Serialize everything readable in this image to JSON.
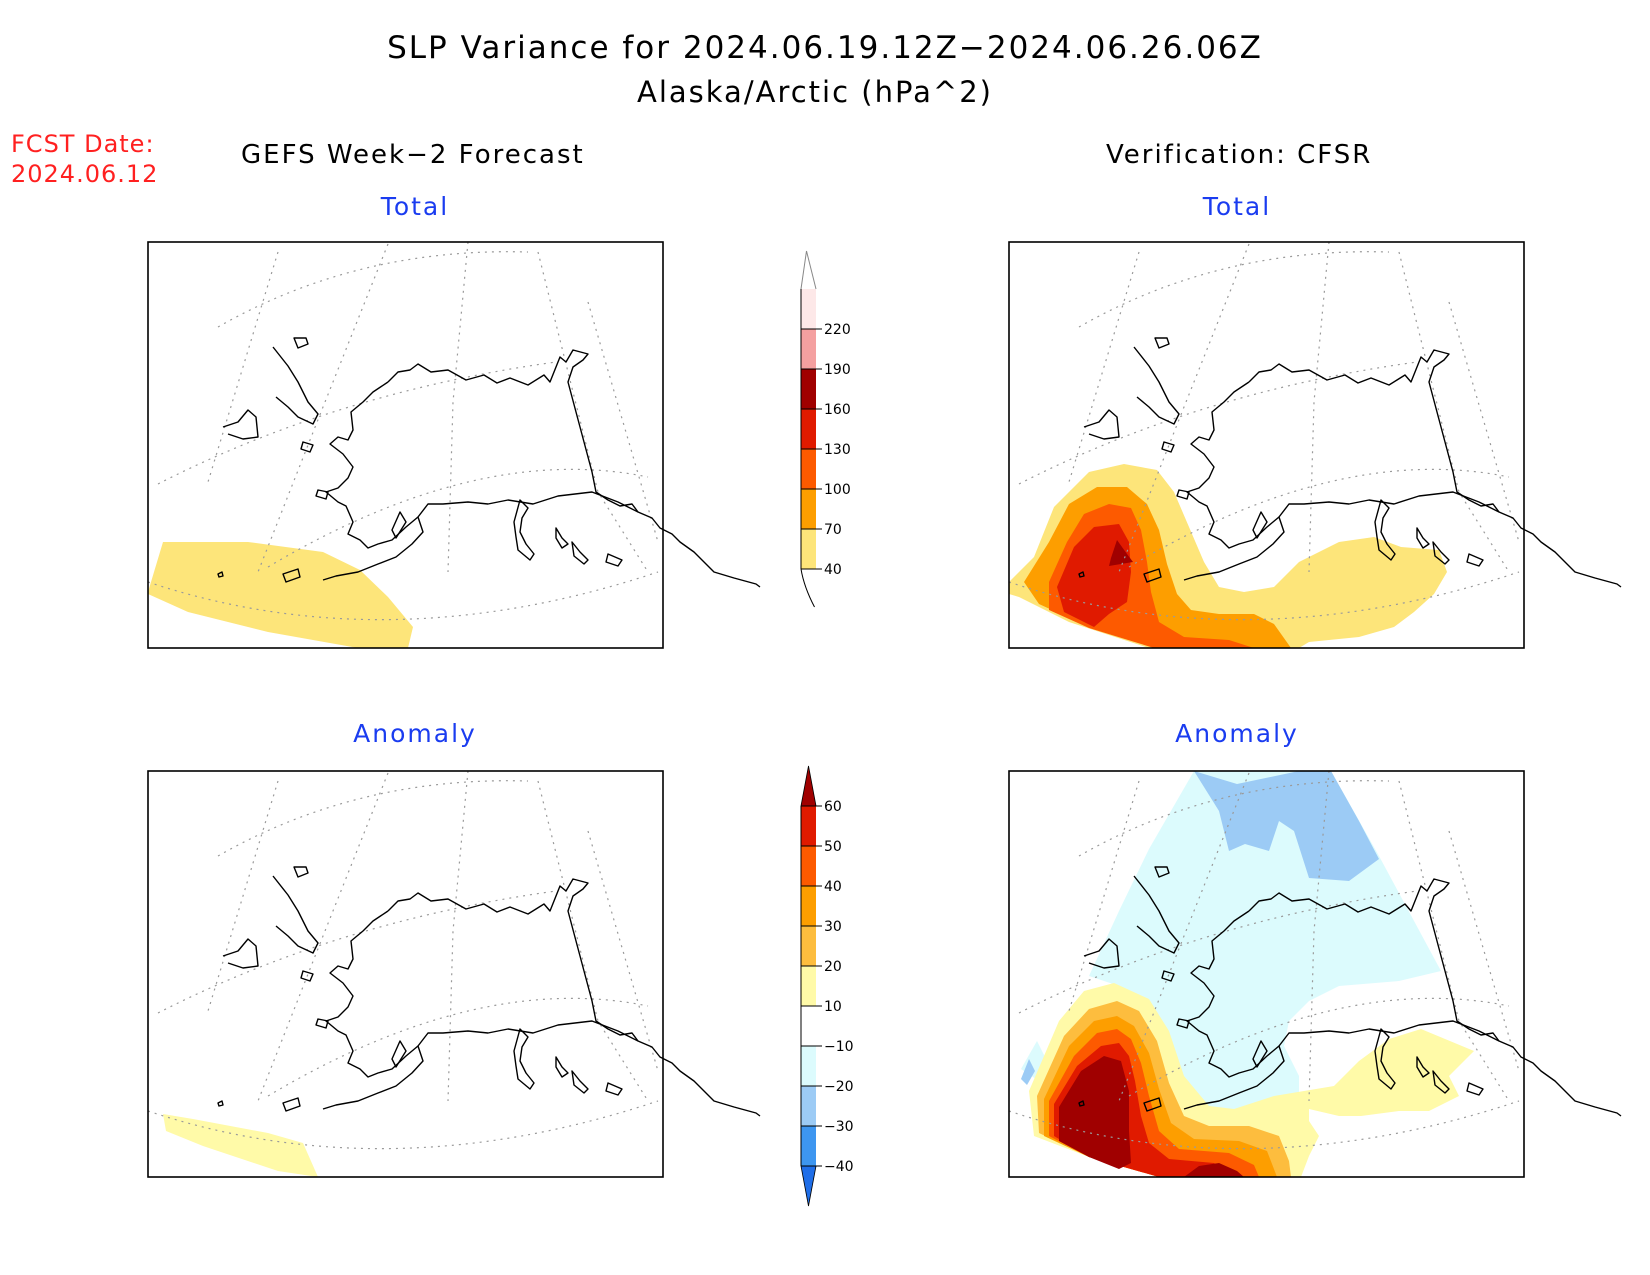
{
  "title": "SLP Variance for 2024.06.19.12Z−2024.06.26.06Z",
  "subtitle": "Alaska/Arctic (hPa^2)",
  "fcst_date": {
    "label": "FCST Date:",
    "value": "2024.06.12"
  },
  "columns": {
    "left": "GEFS Week−2 Forecast",
    "right": "Verification: CFSR"
  },
  "panels": {
    "top_left": "Total",
    "top_right": "Total",
    "bottom_left": "Anomaly",
    "bottom_right": "Anomaly"
  },
  "colors": {
    "title_text": "#000000",
    "fcst_text": "#ff2020",
    "panel_title_text": "#1a3cf0"
  },
  "legends": {
    "total": {
      "levels": [
        "40",
        "70",
        "100",
        "130",
        "160",
        "190",
        "220"
      ],
      "colors": [
        "#fde57a",
        "#fd9e00",
        "#fd5a00",
        "#e01a00",
        "#a00000",
        "#f4a0a0",
        "#fde8e8"
      ]
    },
    "anomaly": {
      "levels": [
        "−40",
        "−30",
        "−20",
        "−10",
        "10",
        "20",
        "30",
        "40",
        "50",
        "60"
      ],
      "colors": [
        "#1f6ee8",
        "#3d96f0",
        "#9ccbf5",
        "#dcfbfd",
        "#ffffff",
        "#fffaa8",
        "#fdbd3e",
        "#fd9e00",
        "#fd5a00",
        "#e01a00",
        "#a00000"
      ]
    }
  }
}
